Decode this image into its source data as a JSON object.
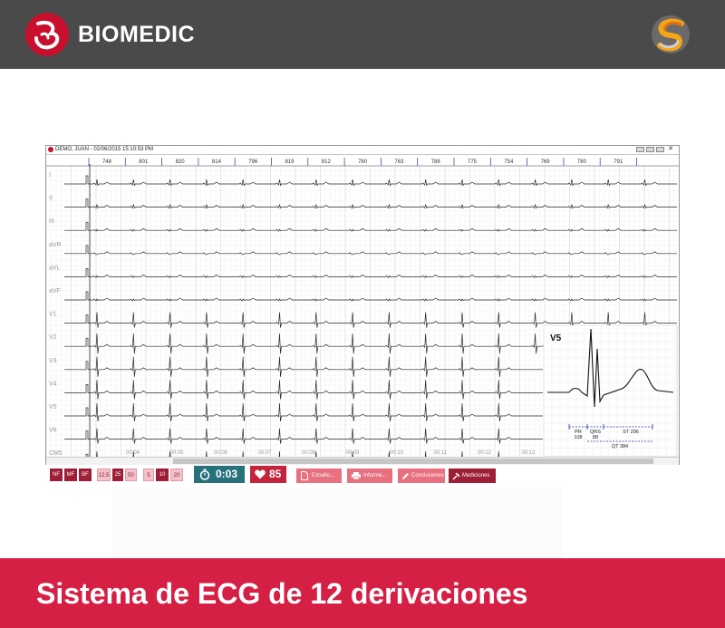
{
  "header": {
    "brand": "BIOMEDIC",
    "brand_color": "#c8102e",
    "bar_color": "#4a4a4a",
    "logo_icon": "biomedic-logo",
    "partner_icon": "swirl-s-logo"
  },
  "window": {
    "title": "DEMO, JUAN - 02/06/2015 15:10:53 PM",
    "rr_intervals": [
      "748",
      "801",
      "820",
      "814",
      "796",
      "819",
      "812",
      "780",
      "763",
      "788",
      "775",
      "754",
      "769",
      "780",
      "791"
    ],
    "leads": [
      "I",
      "II",
      "III",
      "aVR",
      "aVL",
      "aVF",
      "V1",
      "V2",
      "V3",
      "V4",
      "V5",
      "V6",
      "CM5"
    ],
    "time_ticks": [
      "00:04",
      "00:05",
      "00:06",
      "00:07",
      "00:08",
      "00:09",
      "00:10",
      "00:11",
      "00:12",
      "00:13"
    ],
    "inset": {
      "lead": "V5",
      "pr_label": "PR",
      "pr_value": "108",
      "qrs_label": "QRS",
      "qrs_value": "88",
      "st": "ST 296",
      "qt": "QT 384"
    }
  },
  "controls": {
    "filters": [
      "NF",
      "MF",
      "BF"
    ],
    "speeds": [
      "12.5",
      "25",
      "50"
    ],
    "gains": [
      "5",
      "10",
      "20"
    ],
    "timer": "0:03",
    "heart_rate": "85",
    "buttons": [
      "Estudio...",
      "Informe...",
      "Conclusiones",
      "Mediciones"
    ]
  },
  "footer": {
    "title": "Sistema de ECG de 12 derivaciones",
    "color": "#d61f44"
  }
}
